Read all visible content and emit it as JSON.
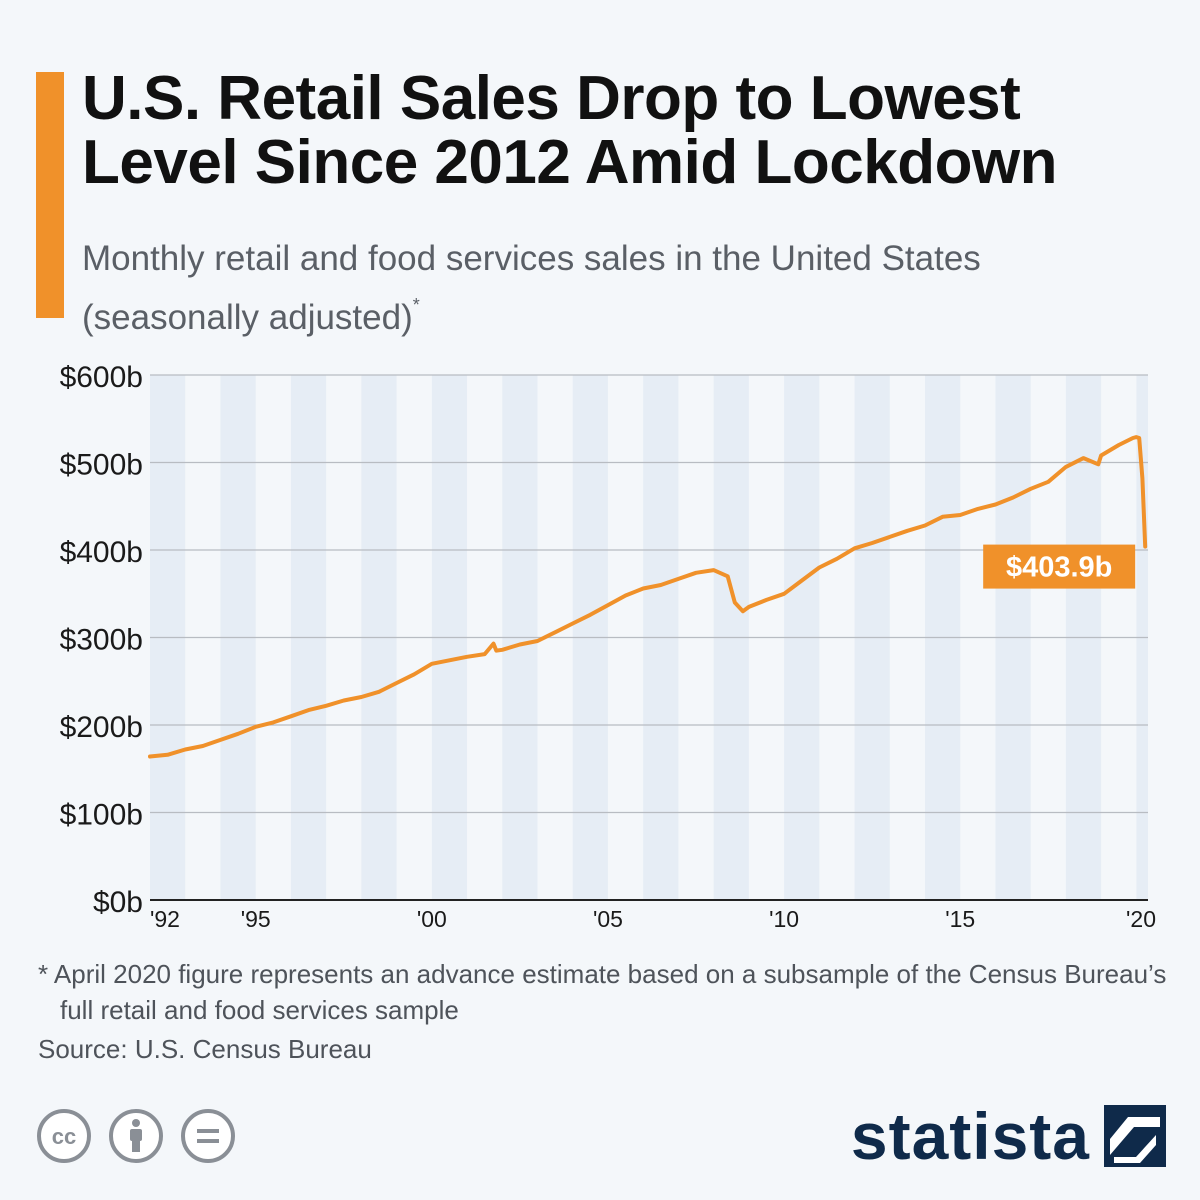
{
  "header": {
    "title_line1": "U.S. Retail Sales Drop to Lowest",
    "title_line2": "Level Since 2012 Amid Lockdown",
    "subtitle_line1": "Monthly retail and food services sales in the United States",
    "subtitle_line2": "(seasonally adjusted)",
    "subtitle_marker": "*"
  },
  "colors": {
    "accent": "#f0912a",
    "line": "#f0912a",
    "grid": "#b8bcc2",
    "band": "#e6edf5",
    "logo": "#0f2a4a"
  },
  "chart_data": {
    "type": "line",
    "title": "U.S. Retail Sales Drop to Lowest Level Since 2012 Amid Lockdown",
    "xlabel": "",
    "ylabel": "",
    "ylim": [
      0,
      600
    ],
    "y_unit": "billion USD",
    "y_ticks": [
      "$0b",
      "$100b",
      "$200b",
      "$300b",
      "$400b",
      "$500b",
      "$600b"
    ],
    "x_ticks": [
      "'92",
      "'95",
      "'00",
      "'05",
      "'10",
      "'15",
      "'20"
    ],
    "x_tick_years": [
      1992,
      1995,
      2000,
      2005,
      2010,
      2015,
      2020
    ],
    "xlim": [
      1992,
      2020.33
    ],
    "grid": true,
    "alternating_year_bands": true,
    "series": [
      {
        "x": [
          1992.0,
          1992.5,
          1993.0,
          1993.5,
          1994.0,
          1994.5,
          1995.0,
          1995.5,
          1996.0,
          1996.5,
          1997.0,
          1997.5,
          1998.0,
          1998.5,
          1999.0,
          1999.5,
          2000.0,
          2000.5,
          2001.0,
          2001.5,
          2001.75,
          2001.83,
          2002.0,
          2002.5,
          2003.0,
          2003.5,
          2004.0,
          2004.5,
          2005.0,
          2005.5,
          2006.0,
          2006.5,
          2007.0,
          2007.5,
          2008.0,
          2008.4,
          2008.6,
          2008.83,
          2009.0,
          2009.5,
          2010.0,
          2010.5,
          2011.0,
          2011.5,
          2012.0,
          2012.5,
          2013.0,
          2013.5,
          2014.0,
          2014.5,
          2015.0,
          2015.5,
          2016.0,
          2016.5,
          2017.0,
          2017.5,
          2018.0,
          2018.5,
          2018.92,
          2019.0,
          2019.5,
          2019.9,
          2020.0,
          2020.08,
          2020.17,
          2020.25
        ],
        "y": [
          164,
          166,
          172,
          176,
          183,
          190,
          198,
          203,
          210,
          217,
          222,
          228,
          232,
          238,
          248,
          258,
          270,
          274,
          278,
          281,
          293,
          285,
          286,
          292,
          296,
          306,
          316,
          326,
          337,
          348,
          356,
          360,
          367,
          374,
          377,
          370,
          340,
          330,
          335,
          343,
          350,
          365,
          380,
          390,
          402,
          408,
          415,
          422,
          428,
          438,
          440,
          447,
          452,
          460,
          470,
          478,
          495,
          505,
          498,
          508,
          520,
          528,
          529,
          528,
          482,
          403.9
        ]
      }
    ],
    "annotations": [
      {
        "label": "$403.9b",
        "x": 2020.25,
        "y": 403.9
      }
    ]
  },
  "footnote": "* April 2020 figure represents an advance estimate based on a subsample of the Census Bureau’s full retail and food services sample",
  "source": "Source: U.S. Census Bureau",
  "brand": "statista",
  "license_icons": [
    "creative-commons-icon",
    "attribution-icon",
    "no-derivatives-icon"
  ]
}
